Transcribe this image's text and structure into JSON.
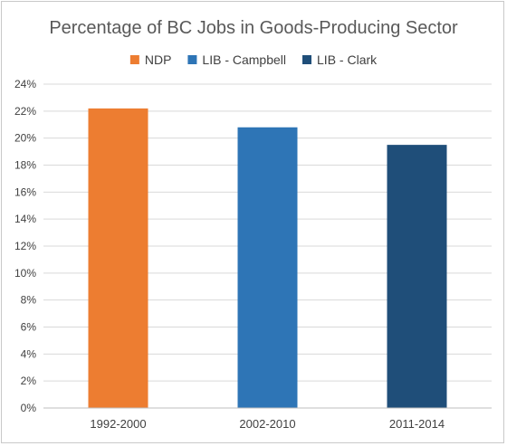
{
  "chart_data": {
    "type": "bar",
    "title": "Percentage of BC Jobs in Goods-Producing Sector",
    "xlabel": "",
    "ylabel": "",
    "categories": [
      "1992-2000",
      "2002-2010",
      "2011-2014"
    ],
    "series": [
      {
        "name": "NDP",
        "color": "#ED7D31",
        "values": [
          0.222,
          null,
          null
        ]
      },
      {
        "name": "LIB - Campbell",
        "color": "#2E75B6",
        "values": [
          null,
          0.208,
          null
        ]
      },
      {
        "name": "LIB - Clark",
        "color": "#1F4E79",
        "values": [
          null,
          null,
          0.195
        ]
      }
    ],
    "ylim": [
      0,
      0.24
    ],
    "ytick_step": 0.02,
    "ytick_labels": [
      "0%",
      "2%",
      "4%",
      "6%",
      "8%",
      "10%",
      "12%",
      "14%",
      "16%",
      "18%",
      "20%",
      "22%",
      "24%"
    ],
    "grid": true,
    "legend_position": "top"
  }
}
